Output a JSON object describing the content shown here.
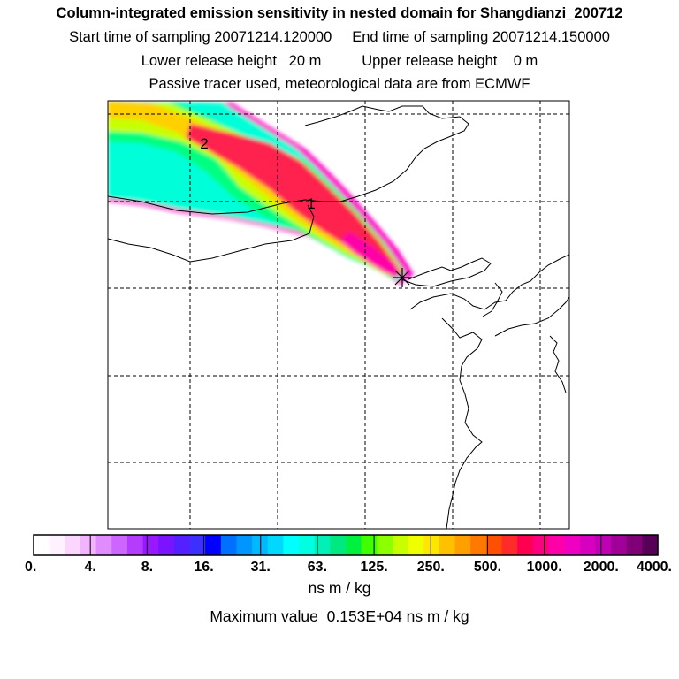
{
  "header": {
    "title": "Column-integrated emission sensitivity in nested domain for Shangdianzi_200712",
    "sampling_line": "Start time of sampling 20071214.120000     End time of sampling 20071214.150000",
    "height_line": "Lower release height   20 m          Upper release height    0 m",
    "tracer_line": "Passive tracer used, meteorological data are from ECMWF"
  },
  "map": {
    "release_site_marker": "asterisk",
    "contour_labels": [
      "2",
      "1"
    ],
    "gridlines": true,
    "plume_colors": [
      "#ff00c8",
      "#ff2050",
      "#ffd000",
      "#c8ff00",
      "#00ff80",
      "#00ffd8"
    ]
  },
  "colorbar": {
    "tick_labels": [
      "0.",
      "4.",
      "8.",
      "16.",
      "31.",
      "63.",
      "125.",
      "250.",
      "500.",
      "1000.",
      "2000.",
      "4000."
    ],
    "colors": [
      "#ffffff",
      "#fff2ff",
      "#fbd7ff",
      "#f2b4ff",
      "#e08cff",
      "#cc66ff",
      "#b43cff",
      "#9818ff",
      "#7a14ff",
      "#5520ff",
      "#3c30ff",
      "#0000ff",
      "#0070ff",
      "#0096ff",
      "#00b8ff",
      "#00d8ff",
      "#00ffff",
      "#00ffe0",
      "#00f0b8",
      "#00e880",
      "#00f040",
      "#40ff00",
      "#8cff00",
      "#c8ff00",
      "#f0ff00",
      "#ffe600",
      "#ffc000",
      "#ffa000",
      "#ff7800",
      "#ff5000",
      "#ff2a2a",
      "#ff0050",
      "#ff0080",
      "#ff00a8",
      "#f000c0",
      "#d800c0",
      "#c000b4",
      "#a00098",
      "#800078",
      "#580058"
    ],
    "units": "ns m / kg",
    "max_value_text": "Maximum value  0.153E+04 ns m / kg"
  }
}
